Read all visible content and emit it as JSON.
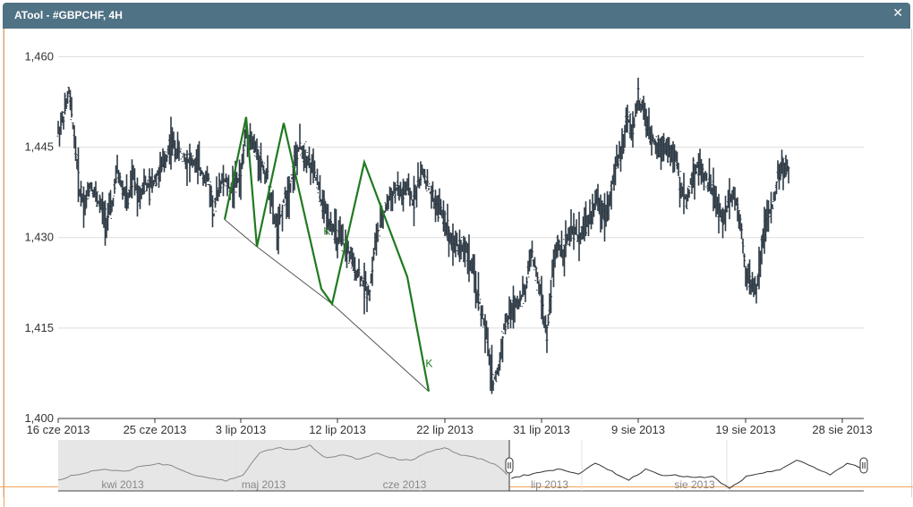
{
  "window": {
    "title": "ATool - #GBPCHF, 4H"
  },
  "chart_data": {
    "type": "line",
    "ylim": [
      1.4,
      1.462
    ],
    "y_ticks": [
      "1,460",
      "1,445",
      "1,430",
      "1,415",
      "1,400"
    ],
    "y_tick_values": [
      1.46,
      1.445,
      1.43,
      1.415,
      1.4
    ],
    "x_ticks": [
      "16 cze 2013",
      "25 cze 2013",
      "3 lip 2013",
      "12 lip 2013",
      "22 lip 2013",
      "31 lip 2013",
      "9 sie 2013",
      "19 sie 2013",
      "28 sie 2013"
    ],
    "x_tick_days": [
      0,
      9,
      17,
      26,
      36,
      45,
      54,
      64,
      73
    ],
    "x_range_days": [
      0,
      75
    ],
    "grid": true,
    "series": [
      {
        "style": "ohlc-bars",
        "points": [
          [
            0.0,
            1.4475
          ],
          [
            0.5,
            1.45
          ],
          [
            1.0,
            1.454
          ],
          [
            1.5,
            1.447
          ],
          [
            2.0,
            1.438
          ],
          [
            2.5,
            1.4355
          ],
          [
            3.0,
            1.439
          ],
          [
            3.5,
            1.437
          ],
          [
            4.0,
            1.435
          ],
          [
            4.5,
            1.433
          ],
          [
            5.0,
            1.435
          ],
          [
            5.5,
            1.441
          ],
          [
            6.0,
            1.438
          ],
          [
            6.5,
            1.436
          ],
          [
            7.0,
            1.44
          ],
          [
            7.5,
            1.437
          ],
          [
            8.0,
            1.439
          ],
          [
            8.5,
            1.438
          ],
          [
            9.0,
            1.44
          ],
          [
            9.5,
            1.441
          ],
          [
            10.0,
            1.443
          ],
          [
            10.5,
            1.446
          ],
          [
            11.0,
            1.4445
          ],
          [
            11.5,
            1.444
          ],
          [
            12.0,
            1.443
          ],
          [
            12.5,
            1.4425
          ],
          [
            13.0,
            1.442
          ],
          [
            13.5,
            1.4405
          ],
          [
            14.0,
            1.4395
          ],
          [
            14.5,
            1.434
          ],
          [
            15.0,
            1.439
          ],
          [
            15.5,
            1.4395
          ],
          [
            16.0,
            1.438
          ],
          [
            16.5,
            1.439
          ],
          [
            17.0,
            1.44
          ],
          [
            17.5,
            1.448
          ],
          [
            18.0,
            1.446
          ],
          [
            18.5,
            1.444
          ],
          [
            19.0,
            1.442
          ],
          [
            19.5,
            1.44
          ],
          [
            20.0,
            1.434
          ],
          [
            20.5,
            1.431
          ],
          [
            21.0,
            1.436
          ],
          [
            21.5,
            1.438
          ],
          [
            22.0,
            1.442
          ],
          [
            22.5,
            1.445
          ],
          [
            23.0,
            1.444
          ],
          [
            23.5,
            1.442
          ],
          [
            24.0,
            1.44
          ],
          [
            24.5,
            1.436
          ],
          [
            25.0,
            1.434
          ],
          [
            25.5,
            1.432
          ],
          [
            26.0,
            1.43
          ],
          [
            26.5,
            1.429
          ],
          [
            27.0,
            1.428
          ],
          [
            27.5,
            1.425
          ],
          [
            28.0,
            1.424
          ],
          [
            28.5,
            1.422
          ],
          [
            29.0,
            1.421
          ],
          [
            29.5,
            1.429
          ],
          [
            30.0,
            1.432
          ],
          [
            30.5,
            1.435
          ],
          [
            31.0,
            1.437
          ],
          [
            31.5,
            1.438
          ],
          [
            32.0,
            1.437
          ],
          [
            32.5,
            1.438
          ],
          [
            33.0,
            1.436
          ],
          [
            33.5,
            1.439
          ],
          [
            34.0,
            1.441
          ],
          [
            34.5,
            1.438
          ],
          [
            35.0,
            1.436
          ],
          [
            35.5,
            1.435
          ],
          [
            36.0,
            1.433
          ],
          [
            36.5,
            1.43
          ],
          [
            37.0,
            1.429
          ],
          [
            37.5,
            1.4285
          ],
          [
            38.0,
            1.428
          ],
          [
            38.5,
            1.425
          ],
          [
            39.0,
            1.421
          ],
          [
            39.5,
            1.417
          ],
          [
            40.0,
            1.412
          ],
          [
            40.5,
            1.406
          ],
          [
            41.0,
            1.408
          ],
          [
            41.5,
            1.415
          ],
          [
            42.0,
            1.417
          ],
          [
            42.5,
            1.419
          ],
          [
            43.0,
            1.42
          ],
          [
            43.5,
            1.421
          ],
          [
            44.0,
            1.428
          ],
          [
            44.5,
            1.424
          ],
          [
            45.0,
            1.42
          ],
          [
            45.5,
            1.413
          ],
          [
            46.0,
            1.424
          ],
          [
            46.5,
            1.429
          ],
          [
            47.0,
            1.428
          ],
          [
            47.5,
            1.43
          ],
          [
            48.0,
            1.431
          ],
          [
            48.5,
            1.43
          ],
          [
            49.0,
            1.432
          ],
          [
            49.5,
            1.433
          ],
          [
            50.0,
            1.436
          ],
          [
            50.5,
            1.435
          ],
          [
            51.0,
            1.434
          ],
          [
            51.5,
            1.438
          ],
          [
            52.0,
            1.442
          ],
          [
            52.5,
            1.445
          ],
          [
            53.0,
            1.45
          ],
          [
            53.5,
            1.448
          ],
          [
            54.0,
            1.453
          ],
          [
            54.5,
            1.451
          ],
          [
            55.0,
            1.447
          ],
          [
            55.5,
            1.446
          ],
          [
            56.0,
            1.445
          ],
          [
            56.5,
            1.4455
          ],
          [
            57.0,
            1.444
          ],
          [
            57.5,
            1.443
          ],
          [
            58.0,
            1.438
          ],
          [
            58.5,
            1.436
          ],
          [
            59.0,
            1.44
          ],
          [
            59.5,
            1.442
          ],
          [
            60.0,
            1.441
          ],
          [
            60.5,
            1.439
          ],
          [
            61.0,
            1.438
          ],
          [
            61.5,
            1.434
          ],
          [
            62.0,
            1.433
          ],
          [
            62.5,
            1.437
          ],
          [
            63.0,
            1.437
          ],
          [
            63.5,
            1.433
          ],
          [
            64.0,
            1.425
          ],
          [
            64.5,
            1.422
          ],
          [
            65.0,
            1.421
          ],
          [
            65.5,
            1.429
          ],
          [
            66.0,
            1.433
          ],
          [
            66.5,
            1.435
          ],
          [
            67.0,
            1.44
          ],
          [
            67.5,
            1.442
          ],
          [
            68.0,
            1.441
          ]
        ]
      },
      {
        "style": "zigzag",
        "color": "#1f7a1f",
        "points": [
          [
            15.5,
            1.433
          ],
          [
            17.5,
            1.45
          ],
          [
            18.5,
            1.4285
          ],
          [
            21.0,
            1.449
          ],
          [
            24.5,
            1.4215
          ],
          [
            25.5,
            1.419
          ],
          [
            28.5,
            1.4425
          ],
          [
            32.5,
            1.4235
          ],
          [
            34.5,
            1.4045
          ]
        ]
      },
      {
        "style": "trendline",
        "color": "#555555",
        "points": [
          [
            15.5,
            1.433
          ],
          [
            18.5,
            1.4285
          ],
          [
            25.5,
            1.419
          ],
          [
            34.5,
            1.4045
          ]
        ]
      }
    ],
    "annotations": [
      {
        "text": "K",
        "x": 24.7,
        "y": 1.4305,
        "color": "#1f7a1f"
      },
      {
        "text": "K",
        "x": 34.2,
        "y": 1.4085,
        "color": "#1f7a1f"
      }
    ],
    "navigator": {
      "labels": [
        "kwi 2013",
        "maj 2013",
        "cze 2013",
        "lip 2013",
        "sie 2013"
      ],
      "values": [
        1.41,
        1.415,
        1.418,
        1.42,
        1.418,
        1.423,
        1.425,
        1.422,
        1.415,
        1.412,
        1.409,
        1.415,
        1.435,
        1.44,
        1.438,
        1.442,
        1.43,
        1.433,
        1.429,
        1.435,
        1.43,
        1.428,
        1.436,
        1.44,
        1.433,
        1.43,
        1.425,
        1.412,
        1.415,
        1.418,
        1.42,
        1.416,
        1.425,
        1.418,
        1.41,
        1.42,
        1.415,
        1.414,
        1.412,
        1.413,
        1.402,
        1.413,
        1.416,
        1.42,
        1.428,
        1.422,
        1.415,
        1.425,
        1.421
      ],
      "selected_range": [
        0.56,
        1.0
      ]
    }
  }
}
